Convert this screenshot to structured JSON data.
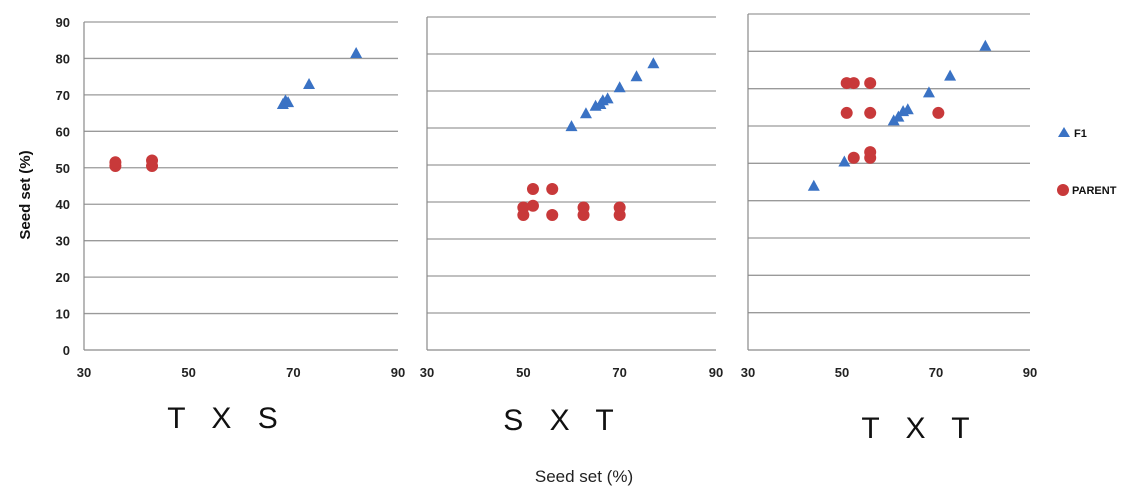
{
  "chart_data": {
    "type": "scatter",
    "ylabel": "Seed set (%)",
    "xlabel": "Seed set (%)",
    "ylim": [
      0,
      90
    ],
    "xlim": [
      30,
      90
    ],
    "yticks": [
      "0",
      "10",
      "20",
      "30",
      "40",
      "50",
      "60",
      "70",
      "80",
      "90"
    ],
    "xticks": [
      "30",
      "50",
      "70",
      "90"
    ],
    "grid": true,
    "legend_position": "right",
    "legend": [
      {
        "name": "F1",
        "marker": "triangle",
        "color": "#3a72c4"
      },
      {
        "name": "PARENT",
        "marker": "circle",
        "color": "#c8393a"
      }
    ],
    "panels": [
      {
        "title": "T X S",
        "series": [
          {
            "name": "F1",
            "points": [
              [
                68,
                67.5
              ],
              [
                68.5,
                68.5
              ],
              [
                69,
                68
              ],
              [
                73,
                73
              ],
              [
                82,
                81.5
              ]
            ]
          },
          {
            "name": "PARENT",
            "points": [
              [
                36,
                50.5
              ],
              [
                36,
                51.5
              ],
              [
                43,
                50.5
              ],
              [
                43,
                52
              ]
            ]
          }
        ]
      },
      {
        "title": "S X T",
        "series": [
          {
            "name": "F1",
            "points": [
              [
                60,
                60.5
              ],
              [
                63,
                64
              ],
              [
                65,
                66
              ],
              [
                66,
                66.5
              ],
              [
                66.5,
                67.5
              ],
              [
                67.5,
                68
              ],
              [
                70,
                71
              ],
              [
                73.5,
                74
              ],
              [
                77,
                77.5
              ]
            ]
          },
          {
            "name": "PARENT",
            "points": [
              [
                50,
                36.5
              ],
              [
                50,
                38.5
              ],
              [
                52,
                39
              ],
              [
                52,
                43.5
              ],
              [
                56,
                43.5
              ],
              [
                56,
                36.5
              ],
              [
                62.5,
                36.5
              ],
              [
                62.5,
                38.5
              ],
              [
                70,
                36.5
              ],
              [
                70,
                38.5
              ]
            ]
          }
        ]
      },
      {
        "title": "T X T",
        "series": [
          {
            "name": "F1",
            "points": [
              [
                44,
                44
              ],
              [
                50.5,
                50.5
              ],
              [
                61,
                61.5
              ],
              [
                62,
                62.5
              ],
              [
                63,
                64
              ],
              [
                64,
                64.5
              ],
              [
                68.5,
                69
              ],
              [
                73,
                73.5
              ],
              [
                80.5,
                81.5
              ]
            ]
          },
          {
            "name": "PARENT",
            "points": [
              [
                51,
                71.5
              ],
              [
                52.5,
                71.5
              ],
              [
                56,
                71.5
              ],
              [
                51,
                63.5
              ],
              [
                56,
                63.5
              ],
              [
                70.5,
                63.5
              ],
              [
                52.5,
                51.5
              ],
              [
                56,
                51.5
              ],
              [
                56,
                53
              ]
            ]
          }
        ]
      }
    ]
  }
}
